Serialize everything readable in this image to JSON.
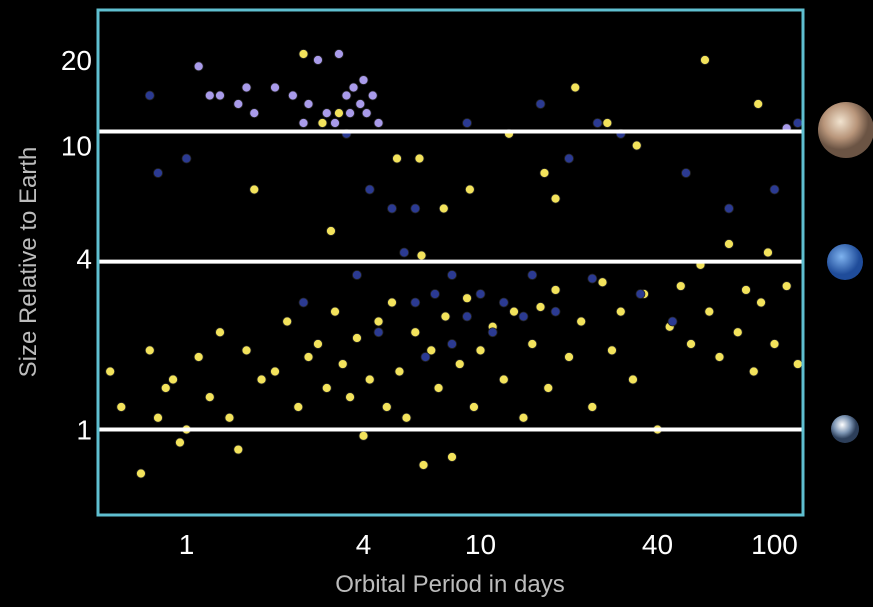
{
  "chart_data": {
    "type": "scatter",
    "xlabel": "Orbital Period in days",
    "ylabel": "Size Relative to Earth",
    "xscale": "log",
    "yscale": "log",
    "xlim": [
      0.5,
      125
    ],
    "ylim": [
      0.5,
      30
    ],
    "xticks": [
      1,
      4,
      10,
      40,
      100
    ],
    "yticks": [
      1,
      4,
      10,
      20
    ],
    "reference_lines": [
      1,
      3.9,
      11.2
    ],
    "series": [
      {
        "color": "#f3e35c",
        "x": [
          0.55,
          0.6,
          0.7,
          0.75,
          0.8,
          0.85,
          0.9,
          0.95,
          1.0,
          1.1,
          1.2,
          1.3,
          1.4,
          1.5,
          1.6,
          1.8,
          2.0,
          2.2,
          2.4,
          2.6,
          2.8,
          3.0,
          3.2,
          3.4,
          3.6,
          3.8,
          4.0,
          4.2,
          4.5,
          4.8,
          5.0,
          5.3,
          5.6,
          6.0,
          6.4,
          6.8,
          7.2,
          7.6,
          8.0,
          8.5,
          9.0,
          9.5,
          10,
          11,
          12,
          13,
          14,
          15,
          16,
          17,
          18,
          20,
          22,
          24,
          26,
          28,
          30,
          33,
          36,
          40,
          44,
          48,
          52,
          56,
          60,
          65,
          70,
          75,
          80,
          85,
          90,
          95,
          100,
          110,
          120,
          2.5,
          3.3,
          6.2,
          7.5,
          9.2,
          12.5,
          16.5,
          21,
          27,
          34,
          1.7,
          2.9,
          5.2,
          58,
          88,
          6.3,
          3.1,
          18
        ],
        "values": [
          1.6,
          1.2,
          0.7,
          1.9,
          1.1,
          1.4,
          1.5,
          0.9,
          1.0,
          1.8,
          1.3,
          2.2,
          1.1,
          0.85,
          1.9,
          1.5,
          1.6,
          2.4,
          1.2,
          1.8,
          2.0,
          1.4,
          2.6,
          1.7,
          1.3,
          2.1,
          0.95,
          1.5,
          2.4,
          1.2,
          2.8,
          1.6,
          1.1,
          2.2,
          0.75,
          1.9,
          1.4,
          2.5,
          0.8,
          1.7,
          2.9,
          1.2,
          1.9,
          2.3,
          1.5,
          2.6,
          1.1,
          2.0,
          2.7,
          1.4,
          3.1,
          1.8,
          2.4,
          1.2,
          3.3,
          1.9,
          2.6,
          1.5,
          3.0,
          1.0,
          2.3,
          3.2,
          2.0,
          3.8,
          2.6,
          1.8,
          4.5,
          2.2,
          3.1,
          1.6,
          2.8,
          4.2,
          2.0,
          3.2,
          1.7,
          21,
          13,
          9,
          6,
          7,
          11,
          8,
          16,
          12,
          10,
          7,
          12,
          9,
          20,
          14,
          4.1,
          5,
          6.5
        ],
        "size": 4.5
      },
      {
        "color": "#2b3a92",
        "x": [
          0.75,
          0.8,
          1.0,
          3.5,
          4.2,
          5,
          6,
          7,
          8,
          9,
          10,
          12,
          15,
          20,
          25,
          30,
          50,
          70,
          100,
          4.5,
          6,
          8,
          11,
          14,
          18,
          24,
          35,
          45,
          5.5,
          3.8,
          16,
          2.5,
          120,
          9,
          6.5
        ],
        "values": [
          15,
          8,
          9,
          11,
          7,
          6,
          6,
          3,
          3.5,
          2.5,
          3,
          2.8,
          3.5,
          9,
          12,
          11,
          8,
          6,
          7,
          2.2,
          2.8,
          2,
          2.2,
          2.5,
          2.6,
          3.4,
          3,
          2.4,
          4.2,
          3.5,
          14,
          2.8,
          12,
          12,
          1.8
        ],
        "size": 4.5
      },
      {
        "color": "#a99bea",
        "x": [
          1.1,
          1.2,
          1.3,
          1.5,
          1.7,
          2.0,
          2.3,
          2.6,
          2.8,
          3.0,
          3.2,
          3.5,
          3.7,
          3.9,
          4.1,
          4.3,
          4.5,
          3.3,
          2.5,
          4.0,
          3.6,
          1.6,
          110
        ],
        "values": [
          19,
          15,
          15,
          14,
          13,
          16,
          15,
          14,
          20,
          13,
          12,
          15,
          16,
          14,
          13,
          15,
          12,
          21,
          12,
          17,
          13,
          16,
          11.5
        ],
        "size": 4.5
      }
    ]
  }
}
